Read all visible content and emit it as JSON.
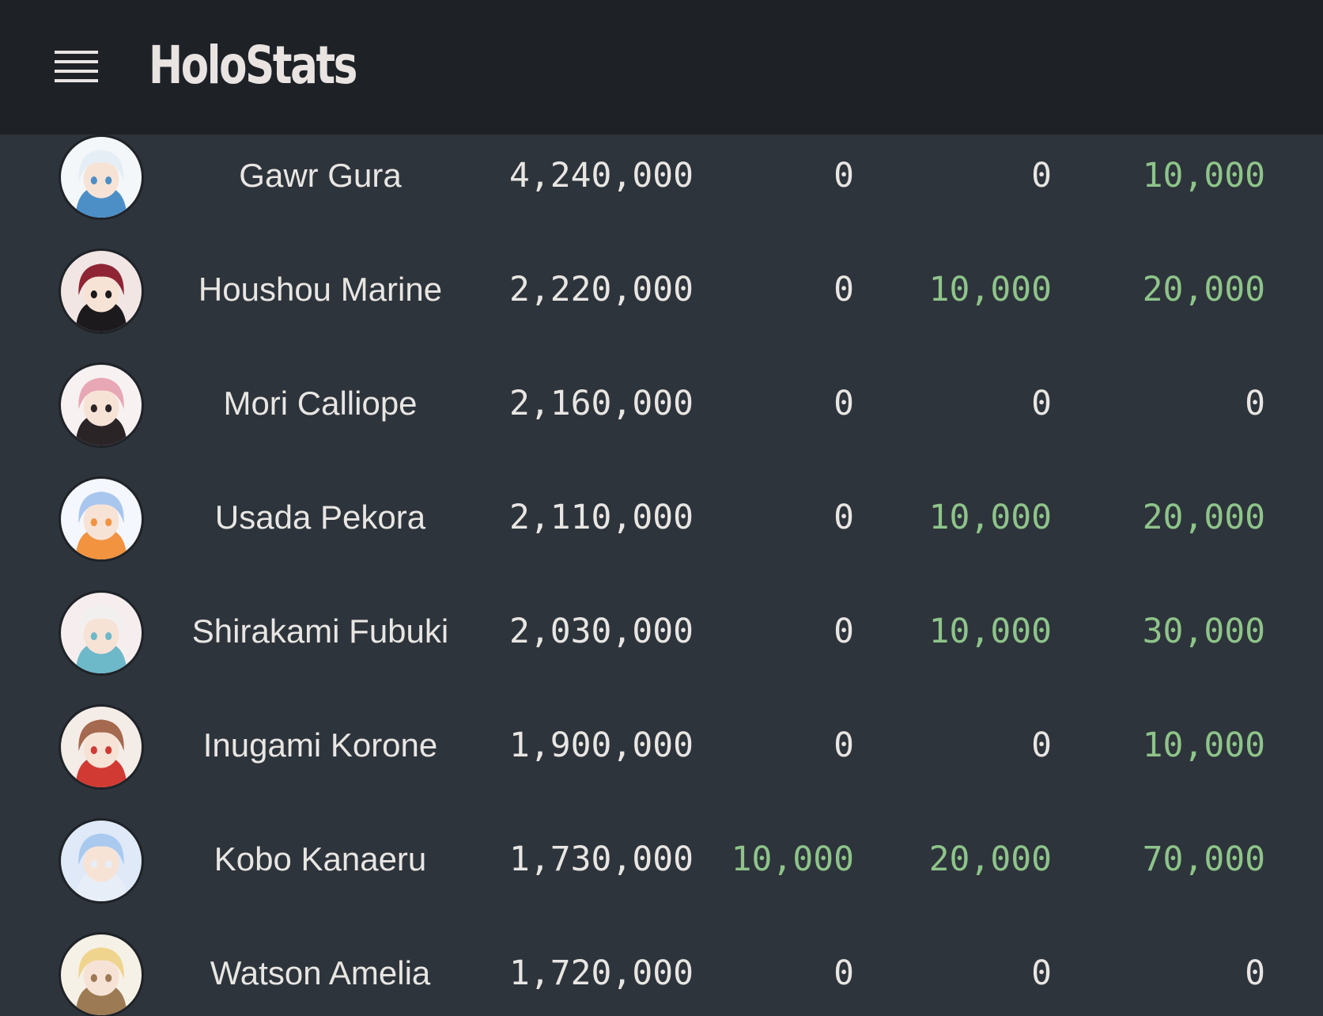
{
  "header": {
    "title": "HoloStats",
    "menu_icon": "hamburger-menu-icon"
  },
  "colors": {
    "header_bg": "#1e2227",
    "page_bg": "#2e343b",
    "text": "#e8e6e3",
    "positive_gain": "#8ec48a"
  },
  "rows": [
    {
      "name": "Gawr Gura",
      "subscribers": "4,240,000",
      "d1": "0",
      "d7": "0",
      "d30": "10,000",
      "avatar": {
        "hair": "#e6eef5",
        "accent": "#4c8fc7",
        "bg": "#f4f7fa"
      }
    },
    {
      "name": "Houshou Marine",
      "subscribers": "2,220,000",
      "d1": "0",
      "d7": "10,000",
      "d30": "20,000",
      "avatar": {
        "hair": "#8e2434",
        "accent": "#1c1a1d",
        "bg": "#f1e6e3"
      }
    },
    {
      "name": "Mori Calliope",
      "subscribers": "2,160,000",
      "d1": "0",
      "d7": "0",
      "d30": "0",
      "avatar": {
        "hair": "#e8a7b4",
        "accent": "#2a2427",
        "bg": "#f7f1f2"
      }
    },
    {
      "name": "Usada Pekora",
      "subscribers": "2,110,000",
      "d1": "0",
      "d7": "10,000",
      "d30": "20,000",
      "avatar": {
        "hair": "#a9c6ee",
        "accent": "#f1933f",
        "bg": "#f4f7fd"
      }
    },
    {
      "name": "Shirakami Fubuki",
      "subscribers": "2,030,000",
      "d1": "0",
      "d7": "10,000",
      "d30": "30,000",
      "avatar": {
        "hair": "#f2f0ef",
        "accent": "#6db8c9",
        "bg": "#f6eeee"
      }
    },
    {
      "name": "Inugami Korone",
      "subscribers": "1,900,000",
      "d1": "0",
      "d7": "0",
      "d30": "10,000",
      "avatar": {
        "hair": "#a4694e",
        "accent": "#d13a33",
        "bg": "#f4ece7"
      }
    },
    {
      "name": "Kobo Kanaeru",
      "subscribers": "1,730,000",
      "d1": "10,000",
      "d7": "20,000",
      "d30": "70,000",
      "avatar": {
        "hair": "#a9c9ef",
        "accent": "#e8eef8",
        "bg": "#dfe9f7"
      }
    },
    {
      "name": "Watson Amelia",
      "subscribers": "1,720,000",
      "d1": "0",
      "d7": "0",
      "d30": "0",
      "avatar": {
        "hair": "#efd48d",
        "accent": "#9c7a53",
        "bg": "#f6f1e6"
      }
    }
  ]
}
